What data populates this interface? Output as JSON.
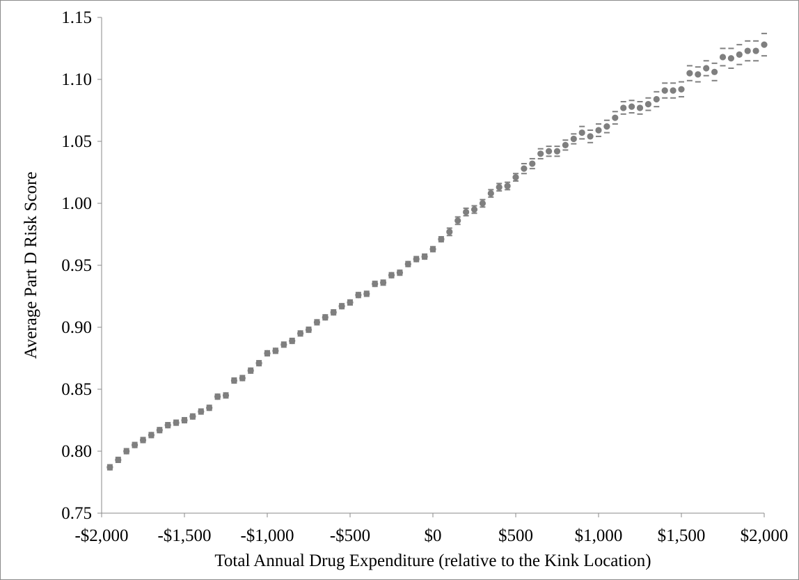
{
  "chart_data": {
    "type": "scatter",
    "title": "",
    "xlabel": "Total Annual Drug Expenditure (relative to the Kink Location)",
    "ylabel": "Average Part D Risk Score",
    "xlim": [
      -2000,
      2000
    ],
    "ylim": [
      0.75,
      1.15
    ],
    "x_ticks": [
      -2000,
      -1500,
      -1000,
      -500,
      0,
      500,
      1000,
      1500,
      2000
    ],
    "x_tick_labels": [
      "-$2,000",
      "-$1,500",
      "-$1,000",
      "-$500",
      "$0",
      "$500",
      "$1,000",
      "$1,500",
      "$2,000"
    ],
    "y_ticks": [
      0.75,
      0.8,
      0.85,
      0.9,
      0.95,
      1.0,
      1.05,
      1.1,
      1.15
    ],
    "y_tick_labels": [
      "0.75",
      "0.80",
      "0.85",
      "0.90",
      "0.95",
      "1.00",
      "1.05",
      "1.10",
      "1.15"
    ],
    "grid": false,
    "legend": "none",
    "marker_color": "#7f7f7f",
    "ci_color": "#7f7f7f",
    "series": [
      {
        "x": [
          -1950,
          -1900,
          -1850,
          -1800,
          -1750,
          -1700,
          -1650,
          -1600,
          -1550,
          -1500,
          -1450,
          -1400,
          -1350,
          -1300,
          -1250,
          -1200,
          -1150,
          -1100,
          -1050,
          -1000,
          -950,
          -900,
          -850,
          -800,
          -750,
          -700,
          -650,
          -600,
          -550,
          -500,
          -450,
          -400,
          -350,
          -300,
          -250,
          -200,
          -150,
          -100,
          -50,
          0,
          50,
          100,
          150,
          200,
          250,
          300,
          350,
          400,
          450,
          500,
          550,
          600,
          650,
          700,
          750,
          800,
          850,
          900,
          950,
          1000,
          1050,
          1100,
          1150,
          1200,
          1250,
          1300,
          1350,
          1400,
          1450,
          1500,
          1550,
          1600,
          1650,
          1700,
          1750,
          1800,
          1850,
          1900,
          1950,
          2000
        ],
        "y": [
          0.787,
          0.793,
          0.8,
          0.805,
          0.809,
          0.813,
          0.817,
          0.821,
          0.823,
          0.825,
          0.828,
          0.832,
          0.835,
          0.844,
          0.845,
          0.857,
          0.859,
          0.865,
          0.871,
          0.879,
          0.881,
          0.886,
          0.889,
          0.895,
          0.898,
          0.904,
          0.908,
          0.912,
          0.917,
          0.92,
          0.926,
          0.927,
          0.935,
          0.936,
          0.942,
          0.944,
          0.951,
          0.955,
          0.957,
          0.963,
          0.971,
          0.977,
          0.986,
          0.993,
          0.995,
          1.0,
          1.008,
          1.013,
          1.014,
          1.021,
          1.028,
          1.032,
          1.04,
          1.042,
          1.042,
          1.047,
          1.052,
          1.057,
          1.054,
          1.059,
          1.062,
          1.069,
          1.077,
          1.078,
          1.077,
          1.08,
          1.084,
          1.091,
          1.091,
          1.092,
          1.105,
          1.104,
          1.109,
          1.106,
          1.118,
          1.117,
          1.12,
          1.123,
          1.123,
          1.128
        ],
        "ci_halfwidth": [
          0.002,
          0.002,
          0.002,
          0.002,
          0.002,
          0.002,
          0.002,
          0.002,
          0.002,
          0.002,
          0.002,
          0.002,
          0.002,
          0.002,
          0.002,
          0.002,
          0.002,
          0.002,
          0.002,
          0.002,
          0.002,
          0.002,
          0.002,
          0.002,
          0.002,
          0.002,
          0.002,
          0.002,
          0.002,
          0.002,
          0.002,
          0.002,
          0.002,
          0.002,
          0.002,
          0.002,
          0.002,
          0.002,
          0.002,
          0.002,
          0.002,
          0.003,
          0.003,
          0.003,
          0.003,
          0.003,
          0.003,
          0.003,
          0.003,
          0.003,
          0.004,
          0.004,
          0.004,
          0.004,
          0.004,
          0.004,
          0.004,
          0.005,
          0.005,
          0.005,
          0.005,
          0.005,
          0.005,
          0.005,
          0.005,
          0.005,
          0.006,
          0.006,
          0.006,
          0.006,
          0.006,
          0.006,
          0.006,
          0.007,
          0.007,
          0.008,
          0.008,
          0.008,
          0.008,
          0.009
        ]
      }
    ]
  }
}
